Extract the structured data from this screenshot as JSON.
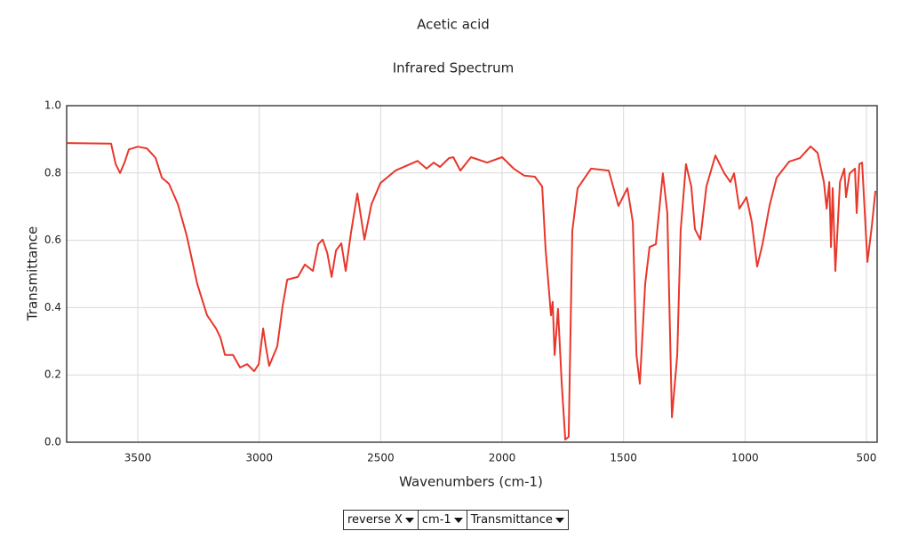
{
  "chart_data": {
    "type": "line",
    "title": "Acetic acid",
    "subtitle": "Infrared Spectrum",
    "x_label": "Wavenumbers (cm-1)",
    "y_label": "Transmittance",
    "xlim": [
      3793,
      456
    ],
    "ylim": [
      0,
      1
    ],
    "xticks": [
      3500,
      3000,
      2500,
      2000,
      1500,
      1000,
      500
    ],
    "yticks": [
      {
        "value": 0,
        "label": "0.0"
      },
      {
        "value": 0.2,
        "label": "0.2"
      },
      {
        "value": 0.4,
        "label": "0.4"
      },
      {
        "value": 0.6,
        "label": "0.6"
      },
      {
        "value": 0.8,
        "label": "0.8"
      },
      {
        "value": 1,
        "label": "1.0"
      }
    ],
    "grid": true,
    "color": "#e8372b",
    "x": [
      3793,
      3610,
      3591,
      3573,
      3555,
      3537,
      3500,
      3463,
      3427,
      3401,
      3372,
      3335,
      3299,
      3255,
      3215,
      3178,
      3160,
      3141,
      3108,
      3079,
      3050,
      3021,
      3002,
      2984,
      2973,
      2959,
      2926,
      2904,
      2885,
      2841,
      2812,
      2779,
      2757,
      2739,
      2720,
      2702,
      2684,
      2662,
      2644,
      2622,
      2596,
      2567,
      2538,
      2501,
      2439,
      2348,
      2311,
      2282,
      2256,
      2219,
      2201,
      2172,
      2128,
      2062,
      2000,
      1952,
      1909,
      1865,
      1835,
      1821,
      1806,
      1799,
      1792,
      1784,
      1770,
      1755,
      1740,
      1726,
      1711,
      1689,
      1634,
      1561,
      1521,
      1484,
      1462,
      1447,
      1433,
      1411,
      1393,
      1367,
      1338,
      1320,
      1301,
      1279,
      1265,
      1243,
      1221,
      1206,
      1184,
      1159,
      1122,
      1085,
      1060,
      1045,
      1023,
      994,
      972,
      950,
      928,
      899,
      870,
      818,
      774,
      730,
      701,
      675,
      664,
      653,
      646,
      639,
      628,
      609,
      591,
      584,
      569,
      547,
      540,
      529,
      518,
      496,
      478,
      463
    ],
    "values": [
      0.889,
      0.887,
      0.826,
      0.8,
      0.83,
      0.87,
      0.878,
      0.873,
      0.845,
      0.786,
      0.768,
      0.707,
      0.615,
      0.47,
      0.377,
      0.338,
      0.311,
      0.259,
      0.259,
      0.222,
      0.232,
      0.211,
      0.232,
      0.338,
      0.285,
      0.227,
      0.285,
      0.404,
      0.483,
      0.491,
      0.528,
      0.509,
      0.588,
      0.602,
      0.562,
      0.491,
      0.57,
      0.591,
      0.509,
      0.623,
      0.739,
      0.602,
      0.707,
      0.77,
      0.807,
      0.836,
      0.813,
      0.831,
      0.818,
      0.844,
      0.847,
      0.807,
      0.847,
      0.831,
      0.847,
      0.813,
      0.792,
      0.789,
      0.76,
      0.575,
      0.443,
      0.377,
      0.417,
      0.259,
      0.396,
      0.179,
      0.008,
      0.016,
      0.628,
      0.755,
      0.813,
      0.807,
      0.702,
      0.755,
      0.654,
      0.259,
      0.174,
      0.47,
      0.58,
      0.588,
      0.799,
      0.681,
      0.074,
      0.259,
      0.628,
      0.826,
      0.76,
      0.633,
      0.602,
      0.76,
      0.852,
      0.799,
      0.773,
      0.799,
      0.694,
      0.728,
      0.654,
      0.522,
      0.588,
      0.702,
      0.786,
      0.834,
      0.844,
      0.879,
      0.86,
      0.773,
      0.694,
      0.773,
      0.58,
      0.755,
      0.509,
      0.773,
      0.813,
      0.728,
      0.799,
      0.813,
      0.681,
      0.826,
      0.831,
      0.536,
      0.641,
      0.747
    ]
  },
  "controls": [
    "reverse X",
    "cm-1",
    "Transmittance"
  ]
}
